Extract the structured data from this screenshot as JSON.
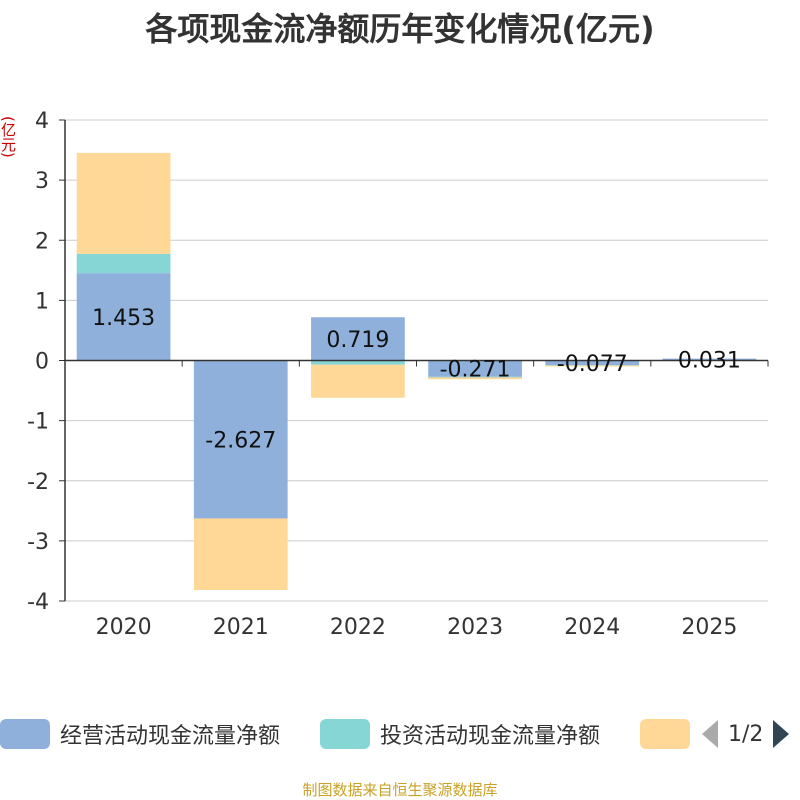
{
  "chart_data": {
    "type": "bar",
    "stacked": true,
    "title": "各项现金流净额历年变化情况(亿元)",
    "ylabel": "(亿元)",
    "ylim": [
      -4,
      4
    ],
    "yticks": [
      4,
      3,
      2,
      1,
      0,
      -1,
      -2,
      -3,
      -4
    ],
    "categories": [
      "2020",
      "2021",
      "2022",
      "2023",
      "2024",
      "2025"
    ],
    "series": [
      {
        "name": "经营活动现金流量净额",
        "color": "#8eb0db",
        "values": [
          1.453,
          -2.627,
          0.719,
          -0.271,
          -0.077,
          0.031
        ],
        "show_labels": true
      },
      {
        "name": "投资活动现金流量净额",
        "color": "#86d6d6",
        "values": [
          0.32,
          0.0,
          -0.07,
          -0.01,
          -0.005,
          0.0
        ],
        "show_labels": false
      },
      {
        "name": "",
        "color": "#ffd796",
        "values": [
          1.68,
          -1.19,
          -0.55,
          -0.03,
          -0.01,
          0.0
        ],
        "show_labels": false
      }
    ],
    "data_labels": [
      "1.453",
      "-2.627",
      "0.719",
      "-0.271",
      "-0.077",
      "0.031"
    ],
    "grid": true,
    "legend": "bottom"
  },
  "legend": {
    "items": [
      "经营活动现金流量净额",
      "投资活动现金流量净额",
      ""
    ],
    "page": "1/2"
  },
  "source": "制图数据来自恒生聚源数据库"
}
